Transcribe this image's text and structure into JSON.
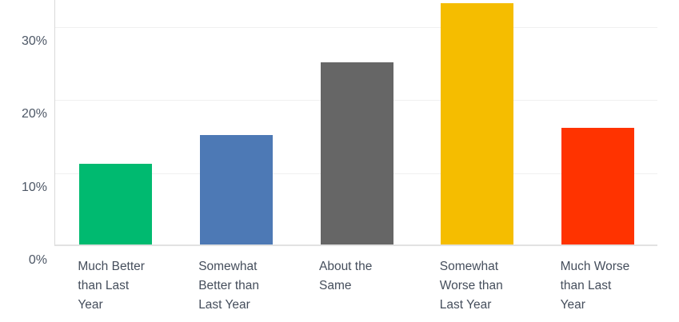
{
  "chart_data": {
    "type": "bar",
    "title": "",
    "xlabel": "",
    "ylabel": "",
    "categories": [
      "Much Better than Last Year",
      "Somewhat Better than Last Year",
      "About the Same",
      "Somewhat Worse than Last Year",
      "Much Worse than Last Year"
    ],
    "values": [
      11,
      15,
      25,
      33,
      16
    ],
    "value_unit": "%",
    "bar_colors": [
      "#00ba70",
      "#4d79b5",
      "#666666",
      "#f5bd00",
      "#ff3300"
    ],
    "ylim": [
      0,
      33.7
    ],
    "yticks": [
      0,
      10,
      20,
      30
    ],
    "ytick_labels": [
      "0%",
      "10%",
      "20%",
      "30%"
    ],
    "grid": true,
    "legend_position": "none"
  },
  "colors": {
    "background": "#ffffff",
    "gridline": "#f0f0f0",
    "axis_line": "#d9d9d9",
    "baseline": "#e2e2e2",
    "ytick_text": "#4d5766",
    "xlabel_text": "#454e5c"
  }
}
